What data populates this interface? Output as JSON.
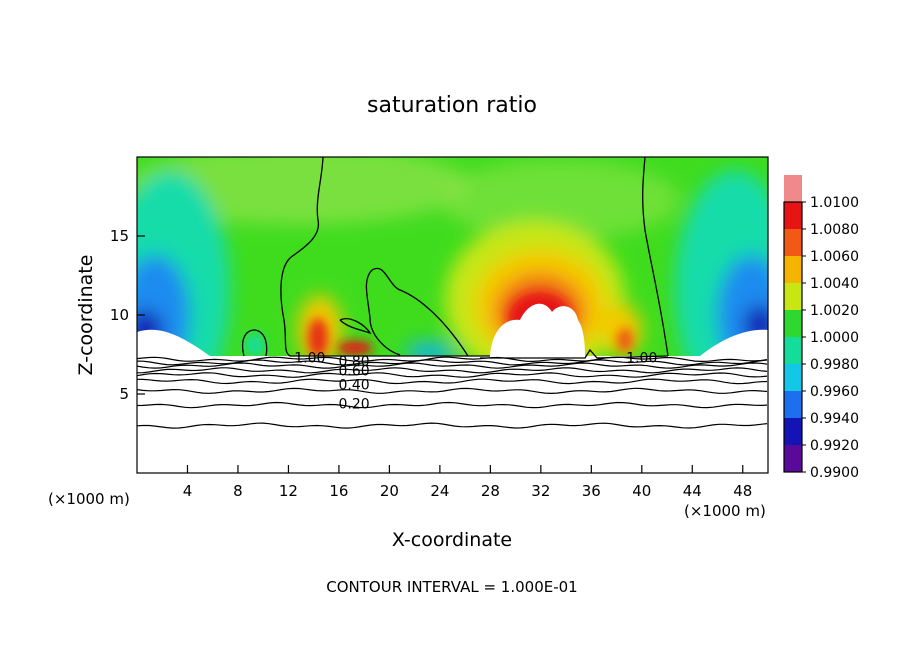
{
  "chart_data": {
    "type": "heatmap",
    "title": "saturation ratio",
    "xlabel": "X-coordinate",
    "ylabel": "Z-coordinate",
    "x_unit_left": "(×1000 m)",
    "x_unit_right": "(×1000 m)",
    "footer": "CONTOUR INTERVAL = 1.000E-01",
    "xlim": [
      0,
      50
    ],
    "ylim": [
      0,
      20
    ],
    "x_ticks": [
      4,
      8,
      12,
      16,
      20,
      24,
      28,
      32,
      36,
      40,
      44,
      48
    ],
    "y_ticks": [
      5,
      10,
      15
    ],
    "colorbar": {
      "levels": [
        0.99,
        0.992,
        0.994,
        0.996,
        0.998,
        1.0,
        1.002,
        1.004,
        1.006,
        1.008,
        1.01
      ],
      "tick_labels": [
        "0.9900",
        "0.9920",
        "0.9940",
        "0.9960",
        "0.9980",
        "1.0000",
        "1.0020",
        "1.0040",
        "1.0060",
        "1.0080",
        "1.0100"
      ],
      "colors": [
        "#5a0a9a",
        "#1414b4",
        "#1e6ef0",
        "#12c8e6",
        "#14dc9a",
        "#2ed82e",
        "#c8e614",
        "#f5b400",
        "#f05a14",
        "#e61414",
        "#f08a8a"
      ]
    },
    "background_color": "#3fdc1e",
    "contour_labels": [
      {
        "text": "1.00",
        "x": 13.7,
        "y": 7.3
      },
      {
        "text": "0.80",
        "x": 17.2,
        "y": 7.1
      },
      {
        "text": "0.60",
        "x": 17.2,
        "y": 6.5
      },
      {
        "text": "0.40",
        "x": 17.2,
        "y": 5.6
      },
      {
        "text": "0.20",
        "x": 17.2,
        "y": 4.4
      },
      {
        "text": "1.00",
        "x": 40.0,
        "y": 7.3
      }
    ],
    "contour_lines_z": [
      7.2,
      7.0,
      6.8,
      6.5,
      6.2,
      5.8,
      5.2,
      4.3,
      3.0
    ]
  }
}
